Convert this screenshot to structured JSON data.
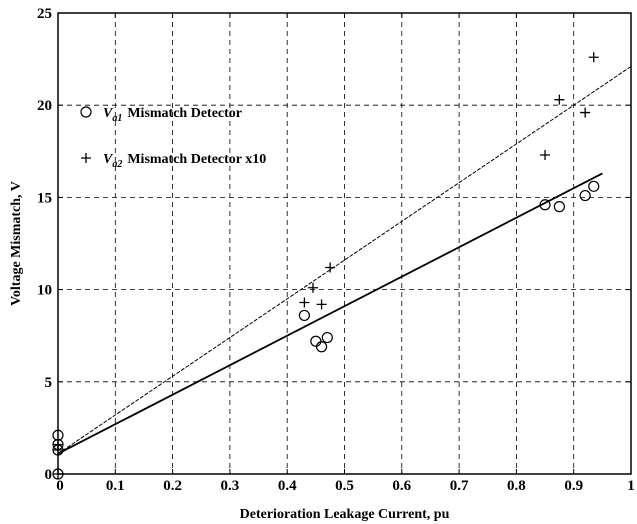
{
  "chart_data": {
    "type": "scatter",
    "xlabel": "Deterioration Leakage Current, pu",
    "ylabel": "Voltage Mismatch, V",
    "xlim": [
      0,
      1
    ],
    "ylim": [
      0,
      25
    ],
    "xticks": [
      0,
      0.1,
      0.2,
      0.3,
      0.4,
      0.5,
      0.6,
      0.7,
      0.8,
      0.9,
      1
    ],
    "xtick_labels": [
      "0",
      "0.1",
      "0.2",
      "0.3",
      "0.4",
      "0.5",
      "0.6",
      "0.7",
      "0.8",
      "0.9",
      "1"
    ],
    "yticks": [
      0,
      5,
      10,
      15,
      20,
      25
    ],
    "ytick_labels": [
      "0",
      "5",
      "10",
      "15",
      "20",
      "25"
    ],
    "grid": true,
    "legend_position": "upper-left",
    "series": [
      {
        "legend_symbol": "V",
        "legend_subscript": "a1",
        "legend_text": "Mismatch Detector",
        "marker": "circle",
        "points": [
          {
            "x": 0,
            "y": 0
          },
          {
            "x": 0,
            "y": 1.3
          },
          {
            "x": 0,
            "y": 1.6
          },
          {
            "x": 0,
            "y": 2.1
          },
          {
            "x": 0.43,
            "y": 8.6
          },
          {
            "x": 0.45,
            "y": 7.2
          },
          {
            "x": 0.46,
            "y": 6.9
          },
          {
            "x": 0.47,
            "y": 7.4
          },
          {
            "x": 0.85,
            "y": 14.6
          },
          {
            "x": 0.875,
            "y": 14.5
          },
          {
            "x": 0.92,
            "y": 15.1
          },
          {
            "x": 0.935,
            "y": 15.6
          }
        ],
        "fit_line": {
          "x": [
            0,
            0.95
          ],
          "y": [
            1.1,
            16.3
          ],
          "style": "solid"
        }
      },
      {
        "legend_symbol": "V",
        "legend_subscript": "a2",
        "legend_text": "Mismatch Detector x10",
        "marker": "plus",
        "points": [
          {
            "x": 0,
            "y": 0
          },
          {
            "x": 0,
            "y": 1.3
          },
          {
            "x": 0,
            "y": 1.6
          },
          {
            "x": 0.43,
            "y": 9.3
          },
          {
            "x": 0.445,
            "y": 10.1
          },
          {
            "x": 0.46,
            "y": 9.2
          },
          {
            "x": 0.475,
            "y": 11.2
          },
          {
            "x": 0.85,
            "y": 17.3
          },
          {
            "x": 0.875,
            "y": 20.3
          },
          {
            "x": 0.92,
            "y": 19.6
          },
          {
            "x": 0.935,
            "y": 22.6
          }
        ],
        "fit_line": {
          "x": [
            0,
            1
          ],
          "y": [
            1.1,
            22.1
          ],
          "style": "dashed"
        }
      }
    ]
  },
  "colors": {
    "marks": "#000000",
    "grid": "#000000",
    "background": "#ffffff"
  }
}
